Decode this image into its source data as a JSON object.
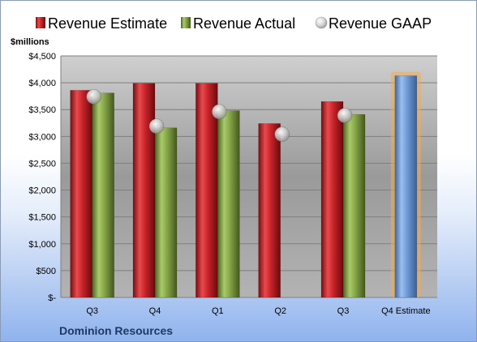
{
  "chart_data": {
    "type": "bar",
    "ylabel": "$millions",
    "company": "Dominion Resources",
    "categories": [
      "Q3",
      "Q4",
      "Q1",
      "Q2",
      "Q3",
      "Q4 Estimate"
    ],
    "yticks": [
      "$-",
      "$500",
      "$1,000",
      "$1,500",
      "$2,000",
      "$2,500",
      "$3,000",
      "$3,500",
      "$4,000",
      "$4,500"
    ],
    "ylim": [
      0,
      4500
    ],
    "grid": true,
    "legend": "top",
    "series": [
      {
        "name": "Revenue Estimate",
        "type": "bar",
        "color": "#d0262a",
        "values": [
          3860,
          3990,
          3990,
          3240,
          3650,
          null
        ]
      },
      {
        "name": "Revenue Actual",
        "type": "bar",
        "color": "#8bab4c",
        "values": [
          3810,
          3160,
          3480,
          null,
          3410,
          null
        ]
      },
      {
        "name": "Revenue GAAP",
        "type": "scatter",
        "color": "#c8c8c8",
        "values": [
          3740,
          3190,
          3460,
          3040,
          3390,
          null
        ]
      },
      {
        "name": "",
        "type": "bar",
        "color": "#6f9bd8",
        "values": [
          null,
          null,
          null,
          null,
          null,
          4130
        ],
        "highlight": "#f5a94d"
      }
    ]
  }
}
